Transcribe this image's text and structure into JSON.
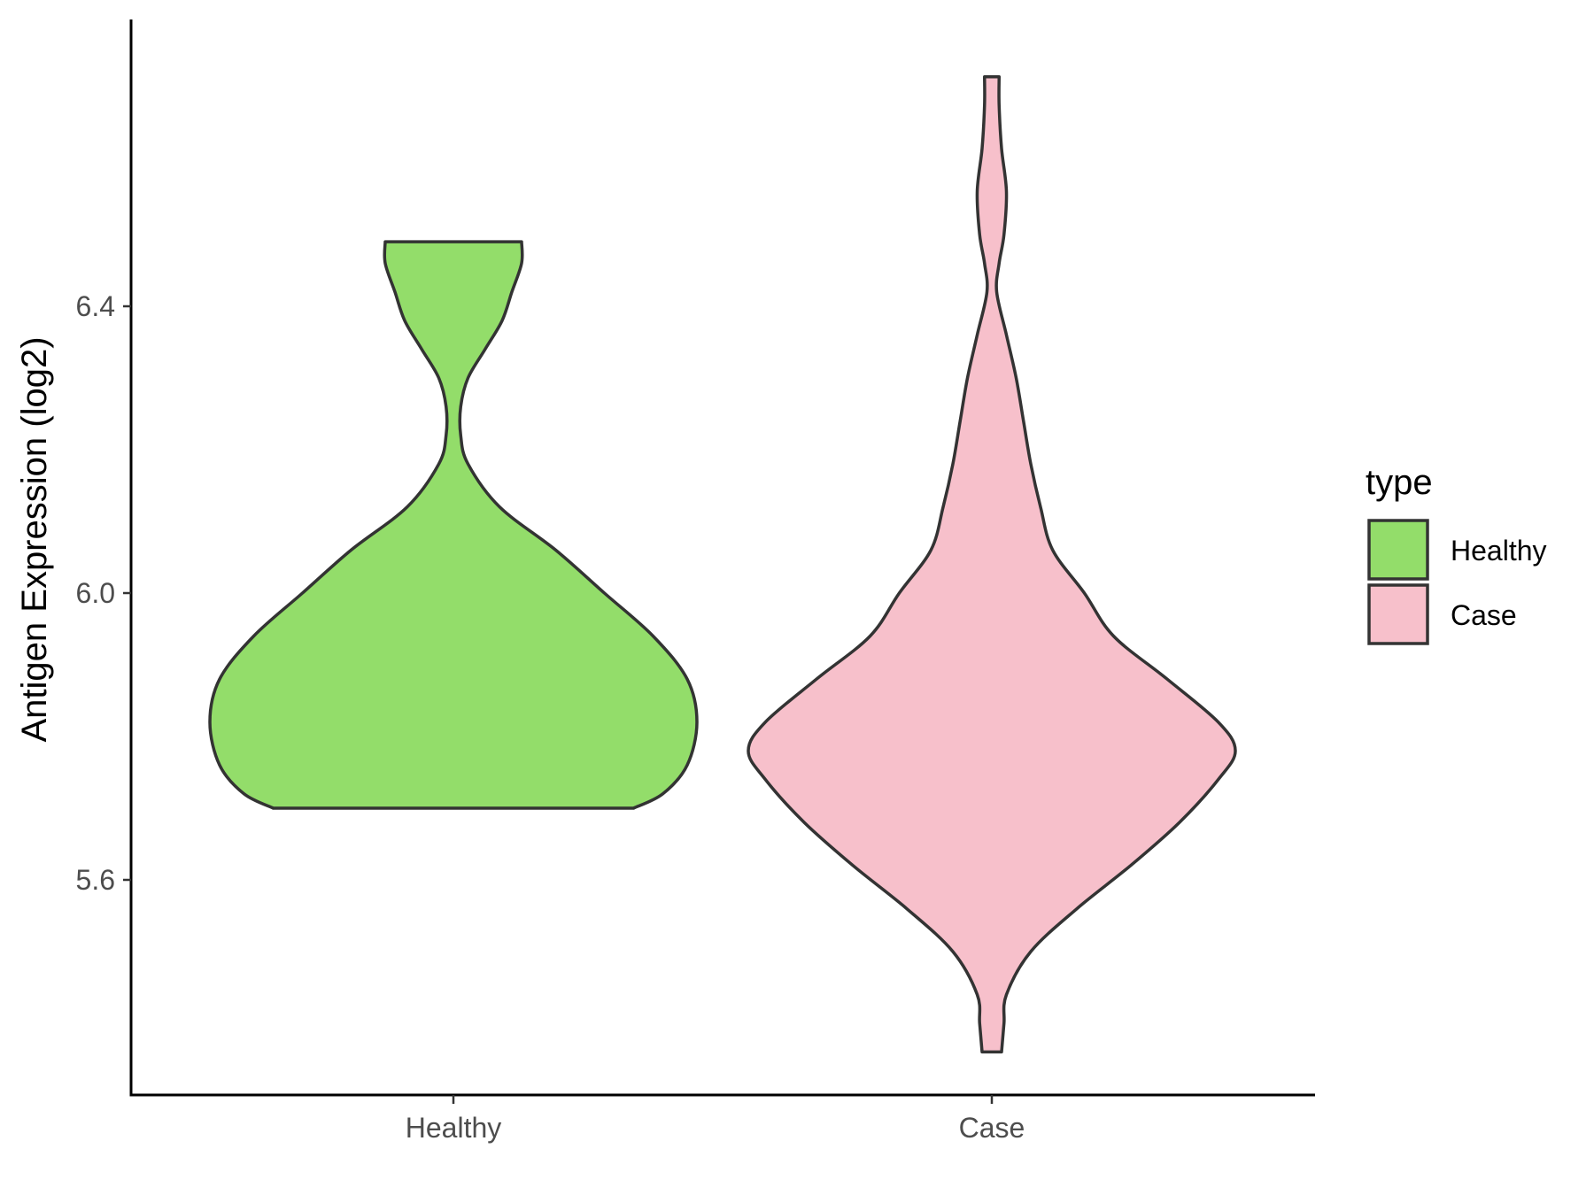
{
  "chart_data": {
    "type": "violin",
    "title": "",
    "xlabel": "",
    "ylabel": "Antigen Expression (log2)",
    "categories": [
      "Healthy",
      "Case"
    ],
    "ylim": [
      5.3,
      6.8
    ],
    "yticks": [
      5.6,
      6.0,
      6.4
    ],
    "grid": false,
    "legend": {
      "title": "type",
      "placement": "right",
      "entries": [
        {
          "label": "Healthy",
          "color": "#93DD6A"
        },
        {
          "label": "Case",
          "color": "#F7C0CB"
        }
      ]
    },
    "series": [
      {
        "category": "Healthy",
        "color": "#93DD6A",
        "min": 5.7,
        "max": 6.49,
        "density": [
          [
            5.7,
            0.74
          ],
          [
            5.72,
            0.86
          ],
          [
            5.76,
            0.96
          ],
          [
            5.82,
            1.0
          ],
          [
            5.88,
            0.96
          ],
          [
            5.94,
            0.82
          ],
          [
            6.0,
            0.62
          ],
          [
            6.06,
            0.42
          ],
          [
            6.12,
            0.19
          ],
          [
            6.18,
            0.06
          ],
          [
            6.22,
            0.03
          ],
          [
            6.26,
            0.03
          ],
          [
            6.3,
            0.06
          ],
          [
            6.34,
            0.13
          ],
          [
            6.38,
            0.2
          ],
          [
            6.42,
            0.24
          ],
          [
            6.46,
            0.28
          ],
          [
            6.49,
            0.28
          ]
        ]
      },
      {
        "category": "Case",
        "color": "#F7C0CB",
        "min": 5.36,
        "max": 6.72,
        "density": [
          [
            5.36,
            0.04
          ],
          [
            5.4,
            0.05
          ],
          [
            5.44,
            0.06
          ],
          [
            5.5,
            0.16
          ],
          [
            5.56,
            0.35
          ],
          [
            5.62,
            0.57
          ],
          [
            5.68,
            0.77
          ],
          [
            5.74,
            0.93
          ],
          [
            5.78,
            1.0
          ],
          [
            5.82,
            0.93
          ],
          [
            5.88,
            0.72
          ],
          [
            5.94,
            0.5
          ],
          [
            6.0,
            0.38
          ],
          [
            6.06,
            0.25
          ],
          [
            6.12,
            0.2
          ],
          [
            6.18,
            0.16
          ],
          [
            6.24,
            0.13
          ],
          [
            6.3,
            0.1
          ],
          [
            6.36,
            0.06
          ],
          [
            6.42,
            0.02
          ],
          [
            6.46,
            0.03
          ],
          [
            6.5,
            0.05
          ],
          [
            6.56,
            0.06
          ],
          [
            6.62,
            0.04
          ],
          [
            6.68,
            0.03
          ],
          [
            6.72,
            0.03
          ]
        ]
      }
    ]
  }
}
